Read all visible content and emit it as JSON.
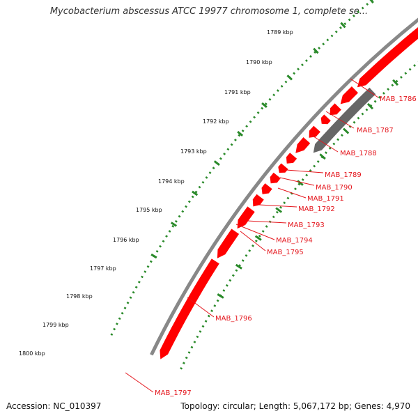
{
  "map": {
    "title": "Mycobacterium abscessus ATCC 19977 chromosome 1, complete se...",
    "accession": "Accession: NC_010397",
    "topology": "Topology: circular; Length: 5,067,172 bp; Genes: 4,970"
  },
  "colors": {
    "forward_gene": "#ff0000",
    "reverse_gene": "#ff0000",
    "pseudo_gene": "#666666",
    "backbone": "#888888",
    "ticks": "#2a8a2a",
    "label": "#e4141b"
  },
  "kbp_labels": [
    "1789 kbp",
    "1790 kbp",
    "1791 kbp",
    "1792 kbp",
    "1793 kbp",
    "1794 kbp",
    "1795 kbp",
    "1796 kbp",
    "1797 kbp",
    "1798 kbp",
    "1799 kbp",
    "1800 kbp"
  ],
  "gene_labels": [
    "MAB_1786",
    "MAB_1787",
    "MAB_1788",
    "MAB_1789",
    "MAB_1790",
    "MAB_1791",
    "MAB_1792",
    "MAB_1793",
    "MAB_1794",
    "MAB_1795",
    "MAB_1796",
    "MAB_1797"
  ]
}
